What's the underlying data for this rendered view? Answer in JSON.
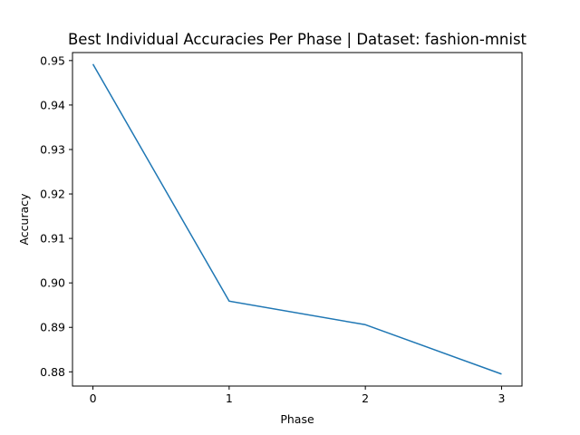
{
  "chart_data": {
    "type": "line",
    "title": "Best Individual Accuracies Per Phase | Dataset: fashion-mnist",
    "xlabel": "Phase",
    "ylabel": "Accuracy",
    "x": [
      0,
      1,
      2,
      3
    ],
    "xticks": [
      "0",
      "1",
      "2",
      "3"
    ],
    "yticks": [
      "0.88",
      "0.89",
      "0.90",
      "0.91",
      "0.92",
      "0.93",
      "0.94",
      "0.95"
    ],
    "xlim": [
      -0.15,
      3.15
    ],
    "ylim": [
      0.8768,
      0.9518
    ],
    "series": [
      {
        "values": [
          0.9492,
          0.8959,
          0.8906,
          0.8795
        ],
        "color": "#1f77b4"
      }
    ],
    "grid": false,
    "legend": "none"
  }
}
